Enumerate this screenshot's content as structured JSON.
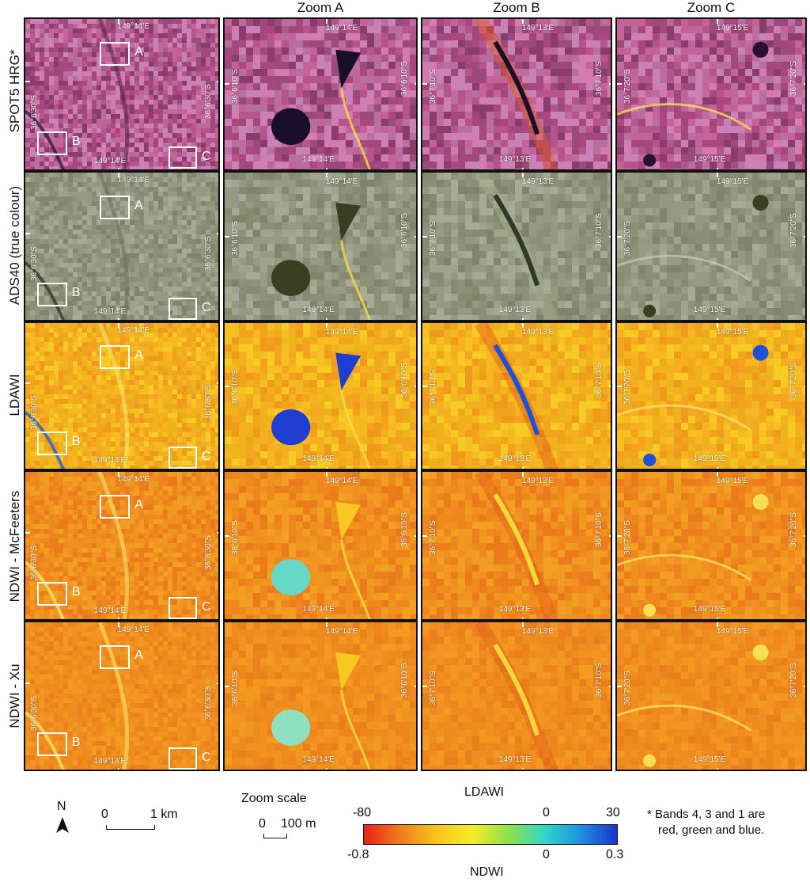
{
  "columns": [
    "Zoom A",
    "Zoom B",
    "Zoom C"
  ],
  "rows": [
    {
      "label": "SPOT5 HRG*",
      "style": "spot"
    },
    {
      "label": "ADS40 (true colour)",
      "style": "ads"
    },
    {
      "label": "LDAWI",
      "style": "ldawi"
    },
    {
      "label": "NDWI - McFeeters",
      "style": "mcf"
    },
    {
      "label": "NDWI - Xu",
      "style": "xu"
    }
  ],
  "overview": {
    "lon_label": "149°14'E",
    "lat_label": "36°6'30\"S",
    "box_labels": [
      "A",
      "B",
      "C"
    ]
  },
  "zooms": [
    {
      "lon_label": "149°14'E",
      "lat_left": "36°6'10\"S",
      "lat_right": "36°6'10\"S"
    },
    {
      "lon_label": "149°13'E",
      "lat_left": "36°7'10\"S",
      "lat_right": "36°7'10\"S"
    },
    {
      "lon_label": "149°15'E",
      "lat_left": "36°7'20\"S",
      "lat_right": "36°7'20\"S"
    }
  ],
  "legend": {
    "north_label": "N",
    "km_scale": {
      "zero": "0",
      "end": "1 km"
    },
    "zoom_scale": {
      "title": "Zoom scale",
      "zero": "0",
      "end": "100 m"
    },
    "colorbar": {
      "title_top": "LDAWI",
      "top_ticks": [
        "-80",
        "0",
        "30"
      ],
      "bottom_ticks": [
        "-0.8",
        "0",
        "0.3"
      ],
      "title_bottom": "NDWI",
      "colors": [
        "#e8221b",
        "#f07a1e",
        "#f9c41c",
        "#f2ee28",
        "#8fe04a",
        "#2fd8c8",
        "#1f8fe0",
        "#1a34c8"
      ]
    },
    "footnote_line1": "* Bands 4, 3 and 1 are",
    "footnote_line2": "red, green and blue."
  }
}
